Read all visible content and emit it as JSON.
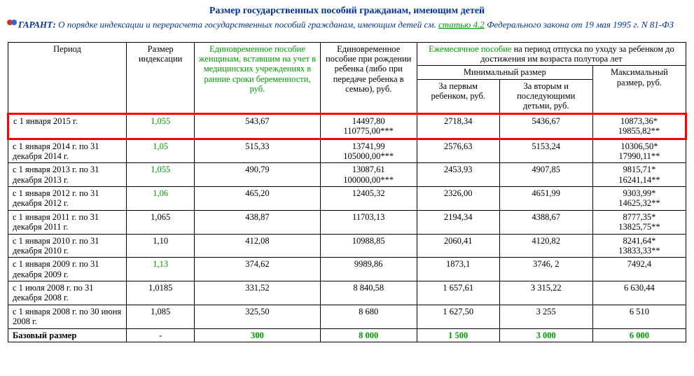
{
  "title": "Размер государственных пособий гражданам, имеющим детей",
  "subtitle": {
    "prefix": "ГАРАНТ:",
    "text1": " О порядке индексации и перерасчета государственных пособий гражданам, имеющим детей см. ",
    "link": "статью 4.2",
    "text2": " Федерального закона от 19 мая 1995 г. N 81-ФЗ"
  },
  "headers": {
    "period": "Период",
    "index": "Размер индексации",
    "onetime_women": "Единовременное пособие женщинам, вставшим на учет в медицинских учреждениях в ранние сроки беременности, руб.",
    "onetime_birth": "Единовременное пособие при рождении ребенка (либо при передаче ребенка в семью), руб.",
    "monthly_top": "Ежемесячное пособие на период отпуска по уходу за ребенком до достижения им возраста полутора лет",
    "min_size": "Минимальный размер",
    "first_child": "За первым ребенком, руб.",
    "second_child": "За вторым и последующими детьми, руб.",
    "max_size": "Максимальный размер, руб."
  },
  "rows": [
    {
      "period": "с 1 января 2015 г.",
      "index": "1,055",
      "index_green": true,
      "c3": "543,67",
      "c4": "14497,80\n110775,00***",
      "c5": "2718,34",
      "c6": "5436,67",
      "c7": "10873,36*\n19855,82**",
      "hl": true
    },
    {
      "period": "с 1 января 2014 г. по 31 декабря 2014 г.",
      "index": "1,05",
      "index_green": true,
      "c3": "515,33",
      "c4": "13741,99\n105000,00***",
      "c5": "2576,63",
      "c6": "5153,24",
      "c7": "10306,50*\n17990,11**"
    },
    {
      "period": "с 1 января 2013 г. по 31 декабря 2013 г.",
      "index": "1,055",
      "index_green": true,
      "c3": "490,79",
      "c4": "13087,61\n100000,00***",
      "c5": "2453,93",
      "c6": "4907,85",
      "c7": "9815,71*\n16241,14**"
    },
    {
      "period": "с 1 января 2012 г. по 31 декабря 2012 г.",
      "index": "1,06",
      "index_green": true,
      "c3": "465,20",
      "c4": "12405,32",
      "c5": "2326,00",
      "c6": "4651,99",
      "c7": "9303,99*\n14625,32**"
    },
    {
      "period": "с 1 января 2011 г. по 31 декабря 2011 г.",
      "index": "1,065",
      "c3": "438,87",
      "c4": "11703,13",
      "c5": "2194,34",
      "c6": "4388,67",
      "c7": "8777,35*\n13825,75**"
    },
    {
      "period": "с 1 января 2010 г. по 31 декабря 2010 г.",
      "index": "1,10",
      "c3": "412,08",
      "c4": "10988,85",
      "c5": "2060,41",
      "c6": "4120,82",
      "c7": "8241,64*\n13833,33**"
    },
    {
      "period": "с 1 января 2009 г. по 31 декабря 2009 г.",
      "index": "1,13",
      "index_green": true,
      "c3": "374,62",
      "c4": "9989,86",
      "c5": "1873,1",
      "c6": "3746, 2",
      "c7": "7492,4"
    },
    {
      "period": "с 1 июля 2008 г. по 31 декабря 2008 г.",
      "index": "1,0185",
      "c3": "331,52",
      "c4": "8 840,58",
      "c5": "1 657,61",
      "c6": "3 315,22",
      "c7": "6 630,44"
    },
    {
      "period": "с 1 января 2008 г. по 30 июня 2008 г.",
      "index": "1,085",
      "c3": "325,50",
      "c4": "8 680",
      "c5": "1 627,50",
      "c6": "3 255",
      "c7": "6 510"
    }
  ],
  "base": {
    "label": "Базовый размер",
    "index": "-",
    "c3": "300",
    "c4": "8 000",
    "c5": "1 500",
    "c6": "3 000",
    "c7": "6 000"
  }
}
